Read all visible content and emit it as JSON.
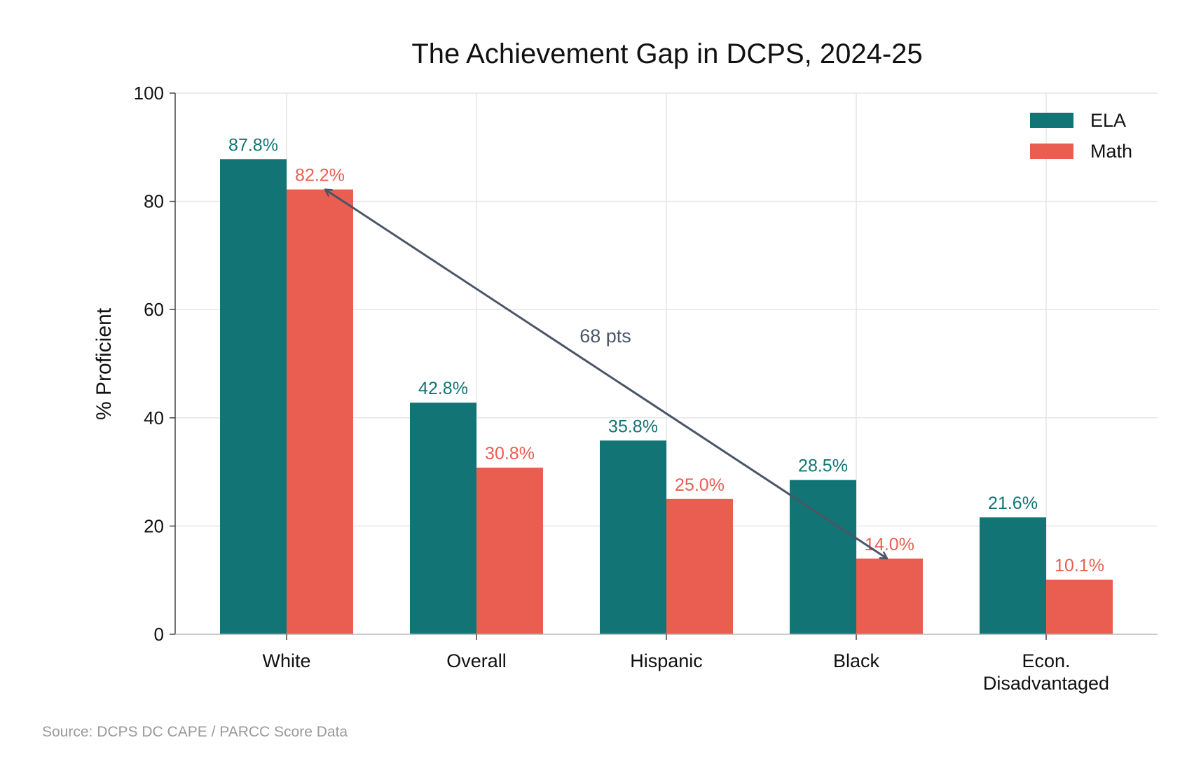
{
  "chart_data": {
    "type": "bar",
    "title": "The Achievement Gap in DCPS, 2024-25",
    "xlabel": "",
    "ylabel": "% Proficient",
    "ylim": [
      0,
      100
    ],
    "yticks": [
      0,
      20,
      40,
      60,
      80,
      100
    ],
    "grid": true,
    "legend_position": "top-right",
    "categories": [
      "White",
      "Overall",
      "Hispanic",
      "Black",
      "Econ.\nDisadvantaged"
    ],
    "series": [
      {
        "name": "ELA",
        "color": "#127474",
        "values": [
          87.8,
          42.8,
          35.8,
          28.5,
          21.6
        ],
        "labels": [
          "87.8%",
          "42.8%",
          "35.8%",
          "28.5%",
          "21.6%"
        ]
      },
      {
        "name": "Math",
        "color": "#E95E50",
        "values": [
          82.2,
          30.8,
          25.0,
          14.0,
          10.1
        ],
        "labels": [
          "82.2%",
          "30.8%",
          "25.0%",
          "14.0%",
          "10.1%"
        ]
      }
    ],
    "annotation": {
      "text": "68 pts",
      "color": "#4A5568",
      "from": {
        "category": "White",
        "series": "Math",
        "value": 82.2
      },
      "to": {
        "category": "Black",
        "series": "Math",
        "value": 14.0
      }
    },
    "source": "Source: DCPS DC CAPE / PARCC Score Data"
  }
}
